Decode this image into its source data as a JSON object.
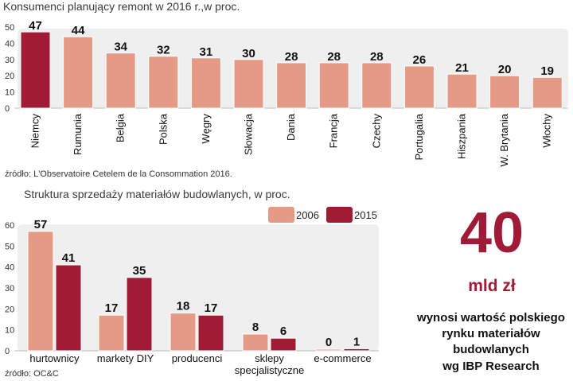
{
  "chart_data": [
    {
      "type": "bar",
      "title": "Konsumenci planujący remont w 2016 r.,w proc.",
      "source": "źródło: L'Observatoire Cetelem de la Consommation 2016.",
      "categories": [
        "Niemcy",
        "Rumunia",
        "Belgia",
        "Polska",
        "Węgry",
        "Słowacja",
        "Dania",
        "Francja",
        "Czechy",
        "Portugalia",
        "Hiszpania",
        "W. Brytania",
        "Włochy"
      ],
      "values": [
        47,
        44,
        34,
        32,
        31,
        30,
        28,
        28,
        28,
        26,
        21,
        20,
        19
      ],
      "highlight_index": 0,
      "ylim": [
        0,
        50
      ],
      "yticks": [
        0,
        10,
        20,
        30,
        40,
        50
      ],
      "grid": false,
      "colors": {
        "bar": "#e59a85",
        "highlight": "#a01c36",
        "panel": "#efefef"
      }
    },
    {
      "type": "bar",
      "title": "Struktura sprzedaży materiałów budowlanych, w proc.",
      "source": "źródło: OC&C",
      "categories": [
        "hurtownicy",
        "markety DIY",
        "producenci",
        "sklepy specjalistyczne",
        "e-commerce"
      ],
      "category_lines": [
        [
          "hurtownicy"
        ],
        [
          "markety DIY"
        ],
        [
          "producenci"
        ],
        [
          "sklepy",
          "specjalistyczne"
        ],
        [
          "e-commerce"
        ]
      ],
      "series": [
        {
          "name": "2006",
          "values": [
            57,
            17,
            18,
            8,
            0
          ],
          "color": "#e59a85"
        },
        {
          "name": "2015",
          "values": [
            41,
            35,
            17,
            6,
            1
          ],
          "color": "#a01c36"
        }
      ],
      "ylim": [
        0,
        60
      ],
      "yticks": [
        0,
        10,
        20,
        30,
        40,
        50,
        60
      ],
      "legend": "top-right",
      "grid": false
    }
  ],
  "highlight": {
    "number": "40",
    "unit": "mld zł",
    "description_lines": [
      "wynosi wartość polskiego",
      "rynku materiałów",
      "budowlanych",
      "wg IBP Research"
    ]
  }
}
